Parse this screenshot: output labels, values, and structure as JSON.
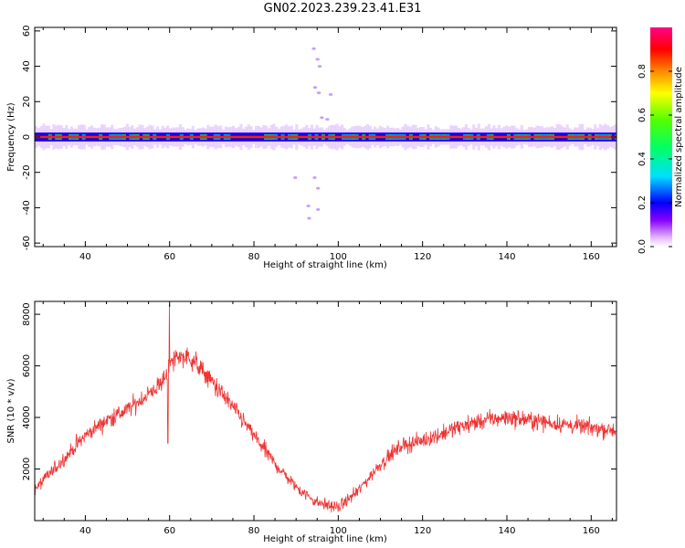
{
  "figure": {
    "title": "GN02.2023.239.23.41.E31"
  },
  "chart_data": [
    {
      "type": "heatmap",
      "title": "GN02.2023.239.23.41.E31",
      "xlabel": "Height of straight line (km)",
      "ylabel": "Frequency (Hz)",
      "xlim": [
        28,
        166
      ],
      "ylim": [
        -62,
        62
      ],
      "xticks": [
        40,
        60,
        80,
        100,
        120,
        140,
        160
      ],
      "yticks": [
        -60,
        -40,
        -20,
        0,
        20,
        40,
        60
      ],
      "colorbar": {
        "label": "Normalized spectral amplitude",
        "range": [
          0,
          1
        ],
        "ticks": [
          "0.0",
          "0.2",
          "0.4",
          "0.6",
          "0.8"
        ],
        "colormap": [
          "#ffffff",
          "#e0b0ff",
          "#8800ff",
          "#0000ff",
          "#00ffff",
          "#00ff00",
          "#ffff00",
          "#ff8800",
          "#ff0000",
          "#ff0088"
        ]
      },
      "band": {
        "center_frequency_hz": 0,
        "half_width_hz": 2.5
      },
      "scatter_points": [
        {
          "x": 94.2,
          "y": 50
        },
        {
          "x": 95.1,
          "y": 44
        },
        {
          "x": 95.6,
          "y": 40
        },
        {
          "x": 98.2,
          "y": 24
        },
        {
          "x": 96.1,
          "y": 11
        },
        {
          "x": 97.4,
          "y": 10
        },
        {
          "x": 95.4,
          "y": 25
        },
        {
          "x": 94.5,
          "y": 28
        },
        {
          "x": 89.8,
          "y": -23
        },
        {
          "x": 94.4,
          "y": -23
        },
        {
          "x": 95.2,
          "y": -29
        },
        {
          "x": 92.9,
          "y": -39
        },
        {
          "x": 93.1,
          "y": -46
        },
        {
          "x": 95.2,
          "y": -41
        }
      ]
    },
    {
      "type": "line",
      "xlabel": "Height of straight line (km)",
      "ylabel": "SNR (10 * v/v)",
      "xlim": [
        28,
        166
      ],
      "ylim": [
        0,
        8500
      ],
      "xticks": [
        40,
        60,
        80,
        100,
        120,
        140,
        160
      ],
      "yticks": [
        2000,
        4000,
        6000,
        8000
      ],
      "color": "#ee3333",
      "series": [
        {
          "x": [
            28,
            35,
            40,
            45,
            50,
            55,
            58,
            60,
            62,
            65,
            70,
            75,
            80,
            85,
            90,
            95,
            100,
            105,
            110,
            115,
            120,
            125,
            130,
            135,
            140,
            145,
            150,
            155,
            160,
            166
          ],
          "values": [
            1200,
            2400,
            3300,
            3900,
            4300,
            4900,
            5300,
            6000,
            6400,
            6300,
            5400,
            4400,
            3300,
            2200,
            1300,
            700,
            500,
            1200,
            2200,
            2900,
            3100,
            3400,
            3700,
            3900,
            4000,
            3900,
            3800,
            3700,
            3600,
            3500
          ]
        }
      ],
      "spikes": [
        {
          "x": 59.9,
          "y": 8400
        },
        {
          "x": 59.6,
          "y": 3000
        }
      ]
    }
  ]
}
